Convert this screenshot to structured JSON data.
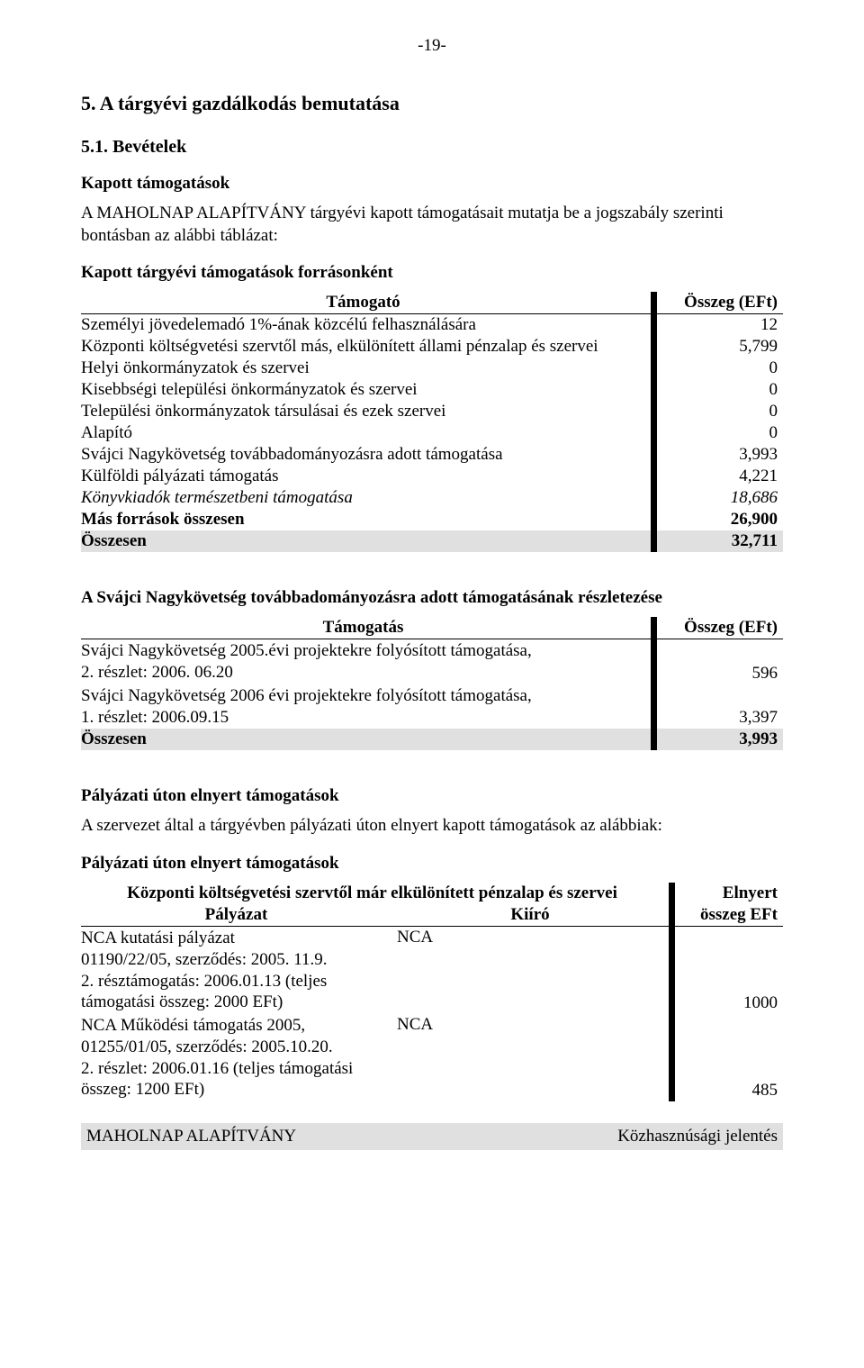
{
  "page_number": "-19-",
  "section_title": "5. A tárgyévi gazdálkodás bemutatása",
  "subsection_title": "5.1. Bevételek",
  "part_title": "Kapott támogatások",
  "intro_paragraph": "A MAHOLNAP ALAPÍTVÁNY tárgyévi kapott támogatásait mutatja be a jogszabály szerinti bontásban az alábbi táblázat:",
  "table1_caption": "Kapott tárgyévi támogatások forrásonként",
  "table1_col_label": "Támogató",
  "table1_col_value": "Összeg (EFt)",
  "table1_rows": [
    {
      "label": "Személyi jövedelemadó 1%-ának közcélú felhasználására",
      "value": "12"
    },
    {
      "label": "Központi költségvetési szervtől más, elkülönített állami pénzalap és szervei",
      "value": "5,799"
    },
    {
      "label": "Helyi önkormányzatok és szervei",
      "value": "0"
    },
    {
      "label": "Kisebbségi települési önkormányzatok és szervei",
      "value": "0"
    },
    {
      "label": "Települési önkormányzatok társulásai és ezek szervei",
      "value": "0"
    },
    {
      "label": "Alapító",
      "value": "0"
    },
    {
      "label": "Svájci Nagykövetség továbbadományozásra adott támogatása",
      "value": "3,993"
    },
    {
      "label": "Külföldi pályázati támogatás",
      "value": "4,221"
    },
    {
      "label": "Könyvkiadók természetbeni támogatása",
      "value": "18,686",
      "italic": true
    },
    {
      "label": "Más források összesen",
      "value": "26,900",
      "bold": true
    }
  ],
  "table1_total_label": "Összesen",
  "table1_total_value": "32,711",
  "table2_title": "A Svájci Nagykövetség továbbadományozásra adott támogatásának részletezése",
  "table2_col_label": "Támogatás",
  "table2_col_value": "Összeg (EFt)",
  "table2_rows": [
    {
      "label": "Svájci Nagykövetség 2005.évi projektekre folyósított támogatása,\n2. részlet: 2006. 06.20",
      "value": "596"
    },
    {
      "label": "Svájci Nagykövetség 2006 évi projektekre folyósított támogatása,\n1. részlet: 2006.09.15",
      "value": "3,397"
    }
  ],
  "table2_total_label": "Összesen",
  "table2_total_value": "3,993",
  "sec3_title": "Pályázati úton elnyert támogatások",
  "sec3_intro": "A szervezet által a tárgyévben pályázati úton elnyert kapott támogatások az alábbiak:",
  "sec3_subtitle": "Pályázati úton elnyert támogatások",
  "table3_header_span": "Központi költségvetési szervtől már elkülönített pénzalap és szervei",
  "table3_col1": "Pályázat",
  "table3_col2": "Kiíró",
  "table3_col3a": "Elnyert",
  "table3_col3b": "összeg EFt",
  "table3_rows": [
    {
      "c1": "NCA kutatási pályázat\n01190/22/05, szerződés: 2005. 11.9.\n2. résztámogatás: 2006.01.13 (teljes\ntámogatási összeg: 2000 EFt)",
      "c2": "NCA",
      "c3": "1000"
    },
    {
      "c1": "NCA Működési támogatás 2005,\n01255/01/05, szerződés: 2005.10.20.\n2. részlet: 2006.01.16 (teljes támogatási\nösszeg: 1200 EFt)",
      "c2": "NCA",
      "c3": "485"
    }
  ],
  "footer_left": "MAHOLNAP ALAPÍTVÁNY",
  "footer_right": "Közhasznúsági jelentés"
}
